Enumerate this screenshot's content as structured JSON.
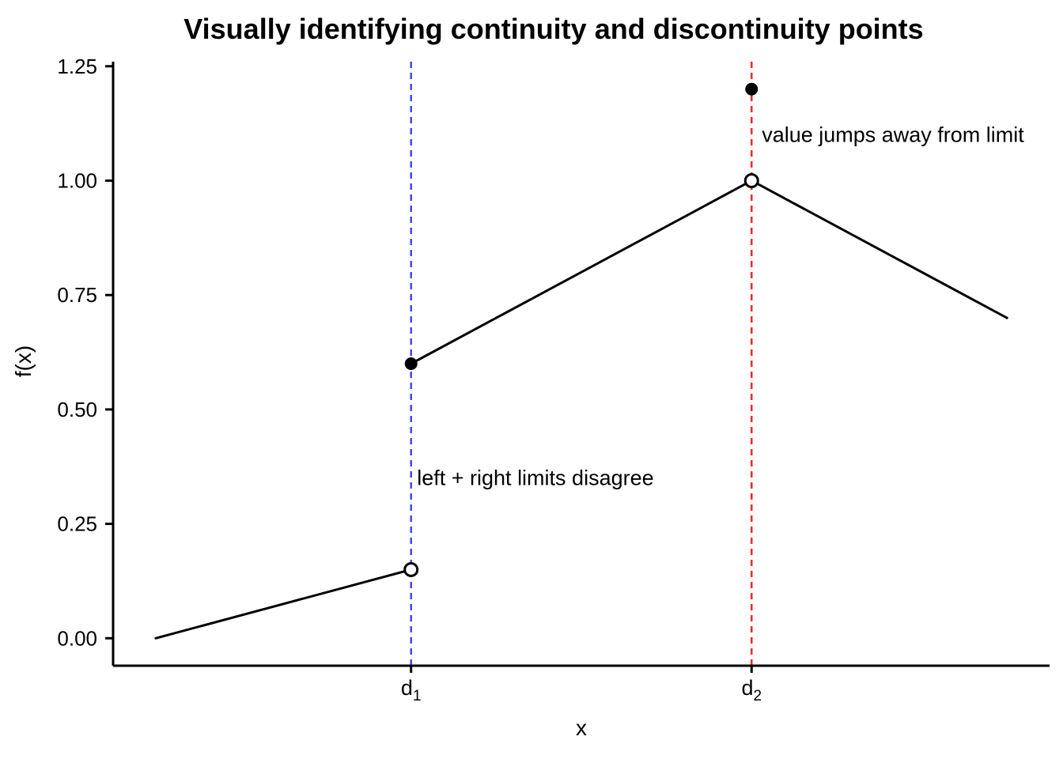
{
  "figure": {
    "background": "#ffffff"
  },
  "chart_data": {
    "type": "line",
    "title": "Visually identifying continuity and discontinuity points",
    "xlabel": "x",
    "ylabel": "f(x)",
    "x_domain": [
      -0.5,
      10.5
    ],
    "y_domain": [
      -0.06,
      1.26
    ],
    "grid": "off",
    "legend": "none",
    "yticks": [
      {
        "value": 0.0,
        "label": "0.00"
      },
      {
        "value": 0.25,
        "label": "0.25"
      },
      {
        "value": 0.5,
        "label": "0.50"
      },
      {
        "value": 0.75,
        "label": "0.75"
      },
      {
        "value": 1.0,
        "label": "1.00"
      },
      {
        "value": 1.25,
        "label": "1.25"
      }
    ],
    "xticks": [
      {
        "value": 3,
        "label": "d",
        "subscript": "1"
      },
      {
        "value": 7,
        "label": "d",
        "subscript": "2"
      }
    ],
    "series": [
      {
        "name": "segment-1",
        "x": [
          0,
          3
        ],
        "y": [
          0.0,
          0.15
        ]
      },
      {
        "name": "segment-2",
        "x": [
          3,
          7
        ],
        "y": [
          0.6,
          1.0
        ]
      },
      {
        "name": "segment-3",
        "x": [
          7,
          10
        ],
        "y": [
          1.0,
          0.7
        ]
      }
    ],
    "open_points": [
      {
        "x": 3,
        "y": 0.15
      },
      {
        "x": 7,
        "y": 1.0
      }
    ],
    "closed_points": [
      {
        "x": 3,
        "y": 0.6
      },
      {
        "x": 7,
        "y": 1.2
      }
    ],
    "vlines": [
      {
        "x": 3,
        "color": "#4444ff",
        "style": "dashed"
      },
      {
        "x": 7,
        "color": "#ff2222",
        "style": "dashed"
      }
    ],
    "annotations": [
      {
        "text": "left + right limits disagree",
        "x": 3.07,
        "y": 0.35,
        "color": "#0b0bff",
        "anchor": "start"
      },
      {
        "text": "value jumps away from limit",
        "x": 7.12,
        "y": 1.1,
        "color": "#ff0000",
        "anchor": "start"
      }
    ],
    "colors": {
      "line": "#000000",
      "axis": "#000000",
      "tick_labels": "#000000",
      "title": "#000000",
      "marker_open_fill": "#ffffff",
      "marker_closed_fill": "#000000"
    }
  }
}
